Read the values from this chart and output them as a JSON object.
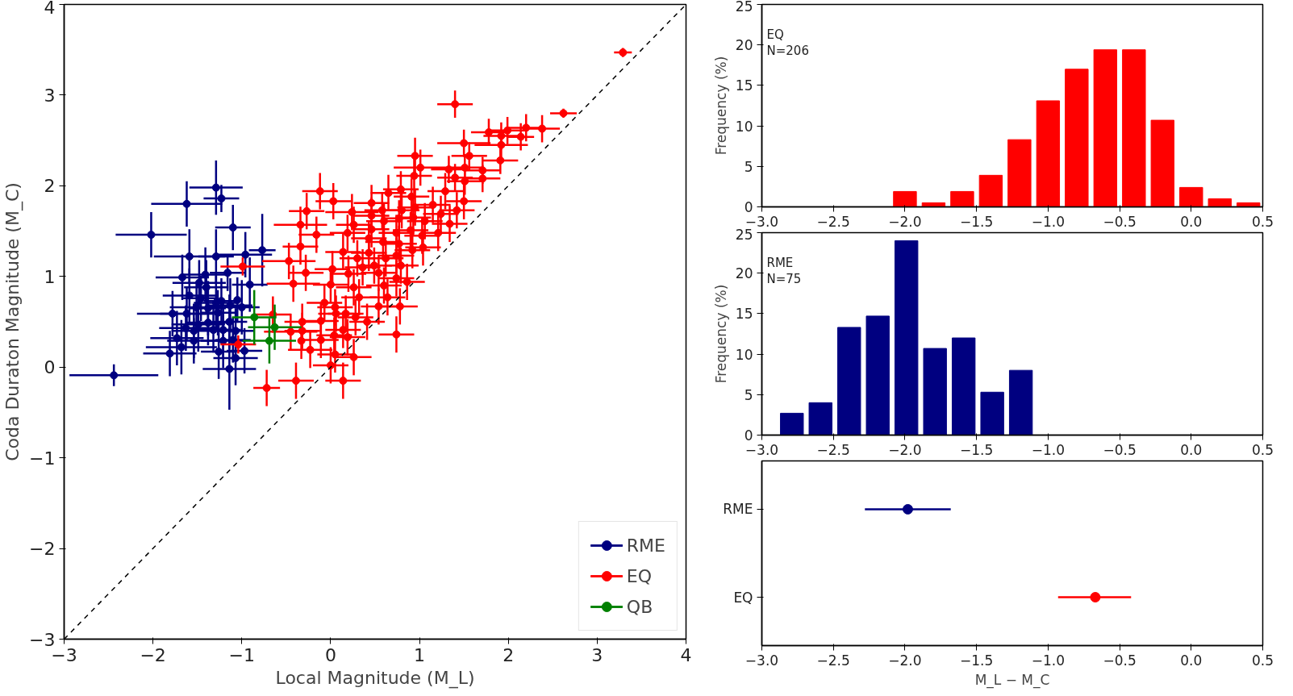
{
  "chart_data": [
    {
      "type": "scatter",
      "xlabel": "Local Magnitude (M_L)",
      "ylabel": "Coda Duraton Magnitude (M_C)",
      "xlim": [
        -3,
        4
      ],
      "ylim": [
        -3,
        4
      ],
      "xticks": [
        {
          "value": -3,
          "label": "−3"
        },
        {
          "value": -2,
          "label": "−2"
        },
        {
          "value": -1,
          "label": "−1"
        },
        0,
        1,
        2,
        3,
        4
      ],
      "yticks": [
        {
          "value": -3,
          "label": "−3"
        },
        {
          "value": -2,
          "label": "−2"
        },
        {
          "value": -1,
          "label": "−1"
        },
        0,
        1,
        2,
        3,
        4
      ],
      "legend": "bottom right",
      "marker": "circle",
      "series": [
        {
          "name": "RME",
          "color": "#000080",
          "x": [
            -2.44,
            -2.02,
            -1.62,
            -1.29,
            -1.23,
            -1.1,
            -1.59,
            -1.29,
            -0.96,
            -0.77,
            -1.16,
            -1.67,
            -1.41,
            -0.91,
            -1.48,
            -1.4,
            -1.59,
            -1.46,
            -1.29,
            -1.23,
            -1.05,
            -1.13,
            -1.51,
            -1.38,
            -1.78,
            -1.62,
            -1.27,
            -1.0,
            -1.49,
            -1.38,
            -1.14,
            -1.63,
            -1.54,
            -1.32,
            -1.21,
            -1.07,
            -1.73,
            -1.54,
            -1.21,
            -1.1,
            -1.68,
            -1.81,
            -1.26,
            -0.97,
            -1.07,
            -1.14
          ],
          "values": [
            -0.09,
            1.46,
            1.8,
            1.98,
            1.86,
            1.54,
            1.22,
            1.22,
            1.24,
            1.29,
            1.04,
            0.99,
            1.02,
            0.91,
            0.93,
            0.88,
            0.79,
            0.76,
            0.71,
            0.73,
            0.74,
            0.68,
            0.66,
            0.65,
            0.59,
            0.59,
            0.6,
            0.66,
            0.47,
            0.49,
            0.5,
            0.43,
            0.4,
            0.41,
            0.41,
            0.4,
            0.32,
            0.29,
            0.29,
            0.3,
            0.22,
            0.15,
            0.17,
            0.18,
            0.1,
            -0.02
          ],
          "xerrors": [
            0.5,
            0.4,
            0.4,
            0.3,
            0.2,
            0.2,
            0.4,
            0.2,
            0.3,
            0.15,
            0.2,
            0.3,
            0.25,
            0.2,
            0.3,
            0.25,
            0.3,
            0.2,
            0.25,
            0.2,
            null,
            0.25,
            0.3,
            0.2,
            0.4,
            0.3,
            0.2,
            0.2,
            0.3,
            0.25,
            0.2,
            0.3,
            0.25,
            0.2,
            0.2,
            0.2,
            0.3,
            0.3,
            0.25,
            0.2,
            0.4,
            0.3,
            0.2,
            0.2,
            0.25,
            0.3
          ],
          "errors": [
            0.12,
            0.25,
            0.25,
            0.3,
            0.15,
            0.25,
            0.3,
            0.3,
            0.25,
            0.4,
            0.2,
            0.25,
            0.3,
            0.3,
            0.25,
            0.3,
            0.3,
            0.25,
            0.3,
            0.25,
            0.25,
            0.3,
            0.25,
            0.3,
            0.25,
            0.3,
            0.25,
            0.3,
            0.3,
            0.25,
            0.3,
            0.25,
            0.3,
            0.25,
            0.3,
            0.25,
            0.3,
            0.25,
            0.3,
            0.25,
            0.3,
            0.25,
            0.3,
            0.25,
            0.3,
            0.45
          ]
        },
        {
          "name": "EQ",
          "color": "#ff0000",
          "x": [
            -0.12,
            0.03,
            -0.27,
            -0.34,
            -0.16,
            -0.34,
            -0.47,
            -0.28,
            -0.42,
            0.0,
            -0.99,
            -0.65,
            -0.45,
            -1.04,
            -0.72,
            -0.39,
            0.14,
            0.0,
            -0.23,
            -0.07,
            0.05,
            0.26,
            0.24,
            0.26,
            1.4,
            2.62,
            2.38,
            2.2,
            2.14,
            1.99,
            1.92,
            1.78,
            1.92,
            1.91,
            1.5,
            1.56,
            0.95,
            1.01,
            0.94,
            1.51,
            1.33,
            1.4,
            1.71,
            1.71,
            1.51,
            0.79,
            0.65,
            1.29,
            0.91,
            1.5,
            1.42,
            0.46,
            0.58,
            0.8,
            0.95,
            1.15,
            1.24,
            0.46,
            0.6,
            0.77,
            0.93,
            1.06,
            1.34,
            0.46,
            0.74,
            0.9,
            1.03,
            1.21,
            0.19,
            0.43,
            0.59,
            0.77,
            0.92,
            1.04,
            0.14,
            0.43,
            0.62,
            0.74,
            0.3,
            0.36,
            0.49,
            0.79,
            0.02,
            0.2,
            0.54,
            0.74,
            0.86,
            0.26,
            0.6,
            0.32,
            0.64,
            0.05,
            0.54,
            0.78,
            0.06,
            0.17,
            0.28,
            -0.32,
            -0.11,
            0.41,
            -0.32,
            -0.33,
            -0.11,
            0.04,
            0.14,
            0.19,
            0.74,
            3.29
          ],
          "values": [
            1.94,
            1.83,
            1.72,
            1.57,
            1.46,
            1.33,
            1.17,
            1.04,
            0.92,
            0.91,
            1.11,
            0.58,
            0.39,
            0.25,
            -0.23,
            -0.15,
            -0.15,
            0.02,
            0.19,
            0.71,
            0.14,
            0.11,
            1.71,
            1.57,
            2.9,
            2.8,
            2.63,
            2.64,
            2.54,
            2.61,
            2.55,
            2.59,
            2.45,
            2.28,
            2.47,
            2.33,
            2.33,
            2.2,
            2.11,
            2.2,
            2.18,
            2.09,
            2.17,
            2.08,
            2.05,
            1.96,
            1.92,
            1.94,
            1.88,
            1.83,
            1.73,
            1.81,
            1.73,
            1.73,
            1.76,
            1.79,
            1.69,
            1.67,
            1.61,
            1.64,
            1.65,
            1.61,
            1.58,
            1.52,
            1.48,
            1.51,
            1.45,
            1.48,
            1.48,
            1.42,
            1.38,
            1.36,
            1.29,
            1.32,
            1.27,
            1.26,
            1.2,
            1.23,
            1.2,
            1.1,
            1.12,
            1.12,
            1.08,
            1.03,
            1.04,
            0.98,
            0.94,
            0.88,
            0.9,
            0.77,
            0.77,
            0.66,
            0.67,
            0.67,
            0.59,
            0.59,
            0.55,
            0.5,
            0.51,
            0.5,
            0.4,
            0.29,
            0.3,
            0.35,
            0.41,
            0.33,
            0.36,
            3.47
          ],
          "xerrors": [
            0.2,
            0.2,
            0.2,
            0.3,
            0.2,
            0.2,
            0.3,
            0.2,
            0.3,
            0.2,
            0.25,
            0.2,
            0.3,
            0.2,
            0.15,
            0.2,
            0.2,
            0.2,
            0.25,
            0.2,
            0.2,
            0.2,
            0.3,
            0.2,
            0.2,
            0.15,
            0.2,
            0.2,
            0.15,
            0.2,
            0.2,
            0.2,
            0.3,
            0.2,
            0.3,
            0.2,
            0.2,
            0.3,
            0.2,
            0.2,
            0.2,
            0.2,
            0.2,
            0.2,
            0.2,
            0.2,
            0.2,
            0.2,
            0.2,
            0.2,
            0.2,
            0.2,
            0.2,
            0.2,
            0.2,
            0.2,
            0.2,
            0.2,
            0.2,
            0.2,
            0.2,
            0.2,
            0.2,
            0.2,
            0.2,
            0.2,
            0.2,
            0.2,
            0.2,
            0.2,
            0.2,
            0.2,
            0.2,
            0.2,
            0.2,
            0.2,
            0.2,
            0.2,
            0.2,
            0.2,
            0.2,
            0.2,
            0.2,
            0.2,
            0.2,
            0.2,
            0.2,
            0.2,
            0.2,
            0.2,
            0.2,
            0.2,
            0.2,
            0.2,
            0.2,
            0.2,
            0.2,
            0.2,
            0.2,
            0.2,
            0.2,
            null,
            0.2,
            0.2,
            0.2,
            0.2,
            0.2,
            0.1
          ],
          "errors": [
            0.2,
            0.2,
            0.2,
            0.2,
            0.2,
            0.2,
            0.2,
            0.2,
            0.2,
            0.2,
            0.1,
            0.2,
            0.2,
            0.1,
            0.2,
            0.2,
            0.2,
            0.2,
            0.2,
            0.2,
            0.2,
            0.2,
            0.2,
            0.2,
            0.15,
            0.05,
            0.15,
            0.15,
            0.15,
            0.15,
            0.15,
            0.15,
            0.15,
            0.15,
            0.15,
            0.15,
            0.2,
            0.2,
            0.2,
            0.15,
            0.15,
            0.15,
            0.15,
            0.15,
            0.15,
            0.2,
            0.2,
            0.2,
            0.2,
            0.2,
            0.2,
            0.2,
            0.2,
            0.2,
            0.2,
            0.2,
            0.2,
            0.2,
            0.2,
            0.2,
            0.2,
            0.2,
            0.2,
            0.2,
            0.2,
            0.2,
            0.2,
            0.2,
            0.2,
            0.2,
            0.2,
            0.2,
            0.2,
            0.2,
            0.2,
            0.2,
            0.2,
            0.2,
            0.2,
            0.2,
            0.2,
            0.2,
            0.2,
            0.2,
            0.2,
            0.2,
            0.2,
            0.2,
            0.2,
            0.2,
            0.2,
            0.2,
            0.2,
            0.2,
            0.2,
            0.2,
            0.2,
            0.2,
            0.2,
            0.2,
            0.2,
            0.2,
            0.2,
            0.2,
            0.2,
            0.2,
            0.2,
            0.05
          ]
        },
        {
          "name": "QB",
          "color": "#008000",
          "x": [
            -0.86,
            -0.63,
            -0.69
          ],
          "values": [
            0.55,
            0.44,
            0.29
          ],
          "xerrors": [
            0.25,
            0.3,
            0.3
          ],
          "errors": [
            0.3,
            0.25,
            0.25
          ]
        },
        {
          "type": "line",
          "color": "#000000",
          "line_style": "dashed",
          "marker": "none",
          "x": [
            -3,
            4
          ],
          "values": [
            -3,
            4
          ]
        }
      ]
    },
    {
      "type": "histogram",
      "ylabel": "Frequency (%)",
      "annotations": [
        "EQ",
        "N=206"
      ],
      "color": "#ff0000",
      "bins": [
        -2.1,
        -1.9,
        -1.7,
        -1.5,
        -1.3,
        -1.1,
        -0.9,
        -0.7,
        -0.5,
        -0.3,
        -0.1,
        0.1,
        0.3,
        0.5
      ],
      "values": [
        1.9,
        0.5,
        1.9,
        3.9,
        8.3,
        13.1,
        17.0,
        19.4,
        19.4,
        10.7,
        2.4,
        1.0,
        0.5
      ],
      "xlim": [
        -3,
        0.5
      ],
      "ylim": [
        0,
        25
      ],
      "xticks": [
        {
          "value": -3,
          "label": "−3.0"
        },
        {
          "value": -2.5,
          "label": "−2.5"
        },
        {
          "value": -2,
          "label": "−2.0"
        },
        {
          "value": -1.5,
          "label": "−1.5"
        },
        {
          "value": -1,
          "label": "−1.0"
        },
        {
          "value": -0.5,
          "label": "−0.5"
        },
        {
          "value": 0,
          "label": "0.0"
        },
        0.5
      ],
      "yticks": [
        0,
        5,
        10,
        15,
        20,
        25
      ]
    },
    {
      "type": "histogram",
      "ylabel": "Frequency (%)",
      "annotations": [
        "RME",
        "N=75"
      ],
      "color": "#000080",
      "bins": [
        -2.89,
        -2.69,
        -2.49,
        -2.29,
        -2.09,
        -1.89,
        -1.69,
        -1.49,
        -1.29,
        -1.09
      ],
      "values": [
        2.7,
        4.0,
        13.3,
        14.7,
        24.0,
        10.7,
        12.0,
        5.3,
        8.0
      ],
      "xlim": [
        -3,
        0.5
      ],
      "ylim": [
        0,
        25
      ],
      "xticks": [
        {
          "value": -3,
          "label": "−3.0"
        },
        {
          "value": -2.5,
          "label": "−2.5"
        },
        {
          "value": -2,
          "label": "−2.0"
        },
        {
          "value": -1.5,
          "label": "−1.5"
        },
        {
          "value": -1,
          "label": "−1.0"
        },
        {
          "value": -0.5,
          "label": "−0.5"
        },
        {
          "value": 0,
          "label": "0.0"
        },
        0.5
      ],
      "yticks": [
        0,
        5,
        10,
        15,
        20,
        25
      ]
    },
    {
      "type": "scatter",
      "orientation": "horizontal",
      "xlabel": "M_L − M_C",
      "marker": "circle",
      "categories": [
        "RME",
        "EQ"
      ],
      "values": [
        -1.98,
        -0.67
      ],
      "colors": [
        "#000080",
        "#ff0000"
      ],
      "errors": [
        [
          -2.28,
          -1.68
        ],
        [
          -0.93,
          -0.42
        ]
      ],
      "xlim": [
        -3,
        0.5
      ],
      "xticks": [
        {
          "value": -3,
          "label": "−3.0"
        },
        {
          "value": -2.5,
          "label": "−2.5"
        },
        {
          "value": -2,
          "label": "−2.0"
        },
        {
          "value": -1.5,
          "label": "−1.5"
        },
        {
          "value": -1,
          "label": "−1.0"
        },
        {
          "value": -0.5,
          "label": "−0.5"
        },
        {
          "value": 0,
          "label": "0.0"
        },
        0.5
      ]
    }
  ]
}
